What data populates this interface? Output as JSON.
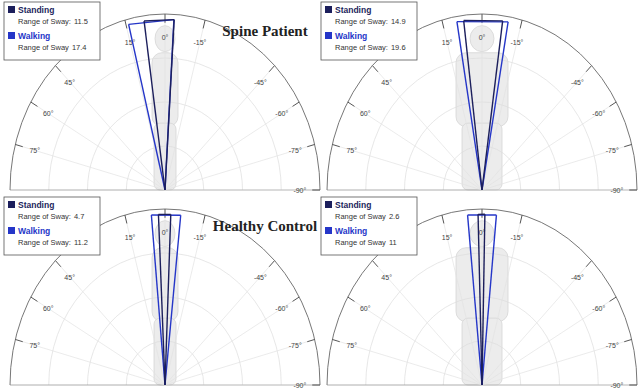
{
  "chart_data": [
    {
      "type": "polar",
      "title": "Spine Patient",
      "xlim": [
        -90,
        90
      ],
      "xticks": [
        {
          "value": 75,
          "label": "75°"
        },
        {
          "value": 60,
          "label": "60°"
        },
        {
          "value": 45,
          "label": "45°"
        },
        {
          "value": 15,
          "label": "15°"
        },
        {
          "value": 0,
          "label": "0°"
        },
        {
          "value": -15,
          "label": "-15°"
        },
        {
          "value": -45,
          "label": "-45°"
        },
        {
          "value": -60,
          "label": "-60°"
        },
        {
          "value": -75,
          "label": "-75°"
        },
        {
          "value": -90,
          "label": "-90°"
        }
      ],
      "grid": true,
      "legend": "upper left",
      "series": [
        {
          "name": "Standing",
          "color": "#1c1f5c",
          "values": [
            8,
            -3.5
          ],
          "range_label": "Range of Sway:",
          "range": 11.5
        },
        {
          "name": "Walking",
          "color": "#2536c8",
          "values": [
            14,
            -3.4
          ],
          "range_label": "Range of Sway",
          "range": 17.4
        }
      ]
    },
    {
      "type": "polar",
      "xlim": [
        -90,
        90
      ],
      "xticks": [
        {
          "value": 75,
          "label": "75°"
        },
        {
          "value": 60,
          "label": "60°"
        },
        {
          "value": 45,
          "label": "45°"
        },
        {
          "value": 15,
          "label": "15°"
        },
        {
          "value": 0,
          "label": "0°"
        },
        {
          "value": -15,
          "label": "-15°"
        },
        {
          "value": -45,
          "label": "-45°"
        },
        {
          "value": -60,
          "label": "-60°"
        },
        {
          "value": -75,
          "label": "-75°"
        },
        {
          "value": -90,
          "label": "-90°"
        }
      ],
      "grid": true,
      "legend": "upper left",
      "series": [
        {
          "name": "Standing",
          "color": "#1c1f5c",
          "values": [
            7,
            -7.9
          ],
          "range_label": "Range of Sway:",
          "range": 14.9
        },
        {
          "name": "Walking",
          "color": "#2536c8",
          "values": [
            9.6,
            -10
          ],
          "range_label": "Range of Sway:",
          "range": 19.6
        }
      ]
    },
    {
      "type": "polar",
      "title": "Healthy Control",
      "xlim": [
        -90,
        90
      ],
      "xticks": [
        {
          "value": 75,
          "label": "75°"
        },
        {
          "value": 60,
          "label": "60°"
        },
        {
          "value": 45,
          "label": "45°"
        },
        {
          "value": 15,
          "label": "15°"
        },
        {
          "value": 0,
          "label": "0°"
        },
        {
          "value": -15,
          "label": "-15°"
        },
        {
          "value": -45,
          "label": "-45°"
        },
        {
          "value": -60,
          "label": "-60°"
        },
        {
          "value": -75,
          "label": "-75°"
        },
        {
          "value": -90,
          "label": "-90°"
        }
      ],
      "grid": true,
      "legend": "upper left",
      "series": [
        {
          "name": "Standing",
          "color": "#1c1f5c",
          "values": [
            2.5,
            -2.2
          ],
          "range_label": "Range of Sway:",
          "range": 4.7
        },
        {
          "name": "Walking",
          "color": "#2536c8",
          "values": [
            5.2,
            -6
          ],
          "range_label": "Range of Sway:",
          "range": 11.2
        }
      ]
    },
    {
      "type": "polar",
      "xlim": [
        -90,
        90
      ],
      "xticks": [
        {
          "value": 75,
          "label": "75°"
        },
        {
          "value": 60,
          "label": "60°"
        },
        {
          "value": 45,
          "label": "45°"
        },
        {
          "value": 15,
          "label": "15°"
        },
        {
          "value": 0,
          "label": "0°"
        },
        {
          "value": -15,
          "label": "-15°"
        },
        {
          "value": -45,
          "label": "-45°"
        },
        {
          "value": -60,
          "label": "-60°"
        },
        {
          "value": -75,
          "label": "-75°"
        },
        {
          "value": -90,
          "label": "-90°"
        }
      ],
      "grid": true,
      "legend": "upper left",
      "series": [
        {
          "name": "Standing",
          "color": "#1c1f5c",
          "values": [
            1.5,
            -1.1
          ],
          "range_label": "Range of Sway",
          "range": 2.6
        },
        {
          "name": "Walking",
          "color": "#2536c8",
          "values": [
            5.5,
            -5.5
          ],
          "range_label": "Range of Sway",
          "range": 11
        }
      ]
    }
  ]
}
